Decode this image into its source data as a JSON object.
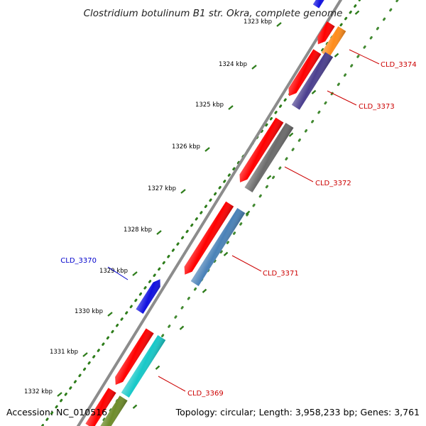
{
  "title": "Clostridium botulinum B1 str. Okra, complete genome",
  "accession_text": "Accession: NC_010516",
  "info_text": "Topology: circular; Length: 3,958,233 bp; Genes: 3,761",
  "colors": {
    "backbone": "#8c8c8c",
    "ticks": "#2e7d1b",
    "plus_label": "#cc0000",
    "minus_label": "#0000cc",
    "blue_gene": "#1010e0",
    "red_gene": "#ff0000",
    "orange_gene": "#ff8c1a",
    "purple_gene": "#4b3f8f",
    "grey_gene": "#6b6b6b",
    "steelblue_gene": "#4a82b8",
    "cyan_gene": "#17c8c8",
    "olive_gene": "#6e8c2a"
  },
  "ticks": [
    {
      "label": "1323 kbp"
    },
    {
      "label": "1324 kbp"
    },
    {
      "label": "1325 kbp"
    },
    {
      "label": "1326 kbp"
    },
    {
      "label": "1327 kbp"
    },
    {
      "label": "1328 kbp"
    },
    {
      "label": "1329 kbp"
    },
    {
      "label": "1330 kbp"
    },
    {
      "label": "1331 kbp"
    },
    {
      "label": "1332 kbp"
    }
  ],
  "genes": [
    {
      "label": "CLD_3374",
      "strand": "+"
    },
    {
      "label": "CLD_3373",
      "strand": "+"
    },
    {
      "label": "CLD_3372",
      "strand": "+"
    },
    {
      "label": "CLD_3371",
      "strand": "+"
    },
    {
      "label": "CLD_3370",
      "strand": "-"
    },
    {
      "label": "CLD_3369",
      "strand": "+"
    }
  ]
}
